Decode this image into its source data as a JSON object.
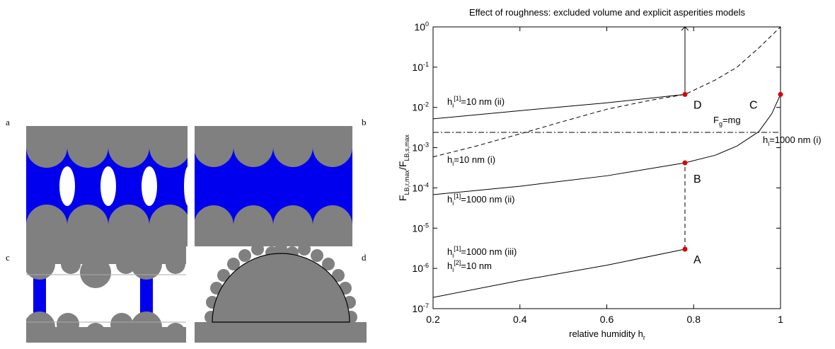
{
  "figure_panels": {
    "labels": [
      "a",
      "b",
      "c",
      "d"
    ]
  },
  "chart_data": {
    "type": "line",
    "title": "Effect of roughness: excluded volume and explicit asperities models",
    "x_label": "relative humidity h_{r}",
    "y_label": "F_{LB,r,max}/F_{LB,s,max}",
    "xlim": [
      0.2,
      1
    ],
    "xticks": [
      0.2,
      0.4,
      0.6,
      0.8,
      1
    ],
    "ylim": [
      1e-07,
      1
    ],
    "log_y": true,
    "yticks": [
      {
        "value": 1e-07,
        "label": "10^{-7}"
      },
      {
        "value": 1e-06,
        "label": "10^{-6}"
      },
      {
        "value": 1e-05,
        "label": "10^{-5}"
      },
      {
        "value": 0.0001,
        "label": "10^{-4}"
      },
      {
        "value": 0.001,
        "label": "10^{-3}"
      },
      {
        "value": 0.01,
        "label": "10^{-2}"
      },
      {
        "value": 0.1,
        "label": "10^{-1}"
      },
      {
        "value": 1,
        "label": "10^{0}"
      }
    ],
    "series": [
      {
        "x": [
          0.2,
          0.4,
          0.6,
          0.78
        ],
        "values": [
          0.0052,
          0.0083,
          0.013,
          0.021
        ],
        "color": "#000000",
        "style": "solid"
      },
      {
        "x": [
          0.2,
          0.3,
          0.4,
          0.5,
          0.6,
          0.7,
          0.78,
          0.85,
          0.9,
          0.95,
          1
        ],
        "values": [
          0.00059,
          0.0011,
          0.0022,
          0.0045,
          0.009,
          0.015,
          0.021,
          0.048,
          0.1,
          0.3,
          1
        ],
        "color": "#000000",
        "style": "dashed"
      },
      {
        "x": [
          0.2,
          0.4,
          0.6,
          0.78,
          0.85,
          0.9,
          0.95,
          0.98,
          1
        ],
        "values": [
          6.8e-05,
          0.00011,
          0.0002,
          0.00042,
          0.00065,
          0.0011,
          0.0025,
          0.007,
          0.021
        ],
        "color": "#000000",
        "style": "solid"
      },
      {
        "x": [
          0.2,
          0.4,
          0.6,
          0.78
        ],
        "values": [
          1.9e-07,
          5e-07,
          1.2e-06,
          3e-06
        ],
        "color": "#000000",
        "style": "solid"
      },
      {
        "x": [
          0.2,
          1
        ],
        "values": [
          0.0024,
          0.0024
        ],
        "color": "#000000",
        "style": "dashdot"
      },
      {
        "x": [
          0.78,
          0.78
        ],
        "values": [
          0.021,
          1
        ],
        "color": "#000000",
        "style": "solid",
        "arrow": true
      },
      {
        "x": [
          0.78,
          0.78
        ],
        "values": [
          3e-06,
          0.00042
        ],
        "color": "#000000",
        "style": "dashed"
      },
      {
        "x": [
          1,
          1
        ],
        "values": [
          0.021,
          1
        ],
        "color": "#000000",
        "style": "dashed"
      }
    ],
    "points": {
      "x": [
        0.78,
        0.78,
        1,
        0.78
      ],
      "values": [
        3e-06,
        0.00042,
        0.021,
        0.021
      ],
      "labels": [
        "A",
        "B",
        "C",
        "D"
      ],
      "color": "#dd0000"
    },
    "annotations": [
      "h_{i}^{[1]}=10 nm (ii)",
      "h_{i}=10 nm (i)",
      "h_{i}^{[1]}=1000 nm (ii)",
      "h_{i}^{[1]}=1000 nm (iii)",
      "h_{i}^{[2]}=10 nm",
      "F_{g}=mg",
      "h_{i}=1000 nm (i)"
    ]
  }
}
